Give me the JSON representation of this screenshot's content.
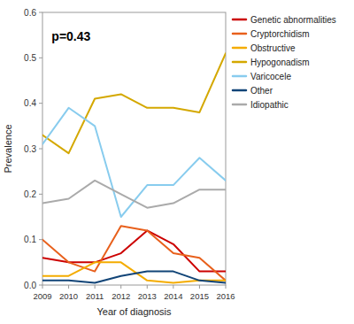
{
  "chart_data": {
    "type": "line",
    "x_label": "Year of diagnosis",
    "y_label": "Prevalence",
    "annotation": "p=0.43",
    "x": [
      2009,
      2010,
      2011,
      2012,
      2013,
      2014,
      2015,
      2016
    ],
    "series": [
      {
        "name": "Genetic abnormalities",
        "color": "#cc0000",
        "values": [
          0.06,
          0.05,
          0.05,
          0.07,
          0.12,
          0.09,
          0.03,
          0.03
        ]
      },
      {
        "name": "Cryptorchidism",
        "color": "#e8601c",
        "values": [
          0.1,
          0.05,
          0.03,
          0.13,
          0.12,
          0.07,
          0.06,
          0.01
        ]
      },
      {
        "name": "Obstructive",
        "color": "#f4ac00",
        "values": [
          0.02,
          0.02,
          0.05,
          0.05,
          0.01,
          0.005,
          0.01,
          0.01
        ]
      },
      {
        "name": "Hypogonadism",
        "color": "#d4a800",
        "values": [
          0.33,
          0.29,
          0.41,
          0.42,
          0.39,
          0.39,
          0.38,
          0.51
        ]
      },
      {
        "name": "Varicocele",
        "color": "#88ccee",
        "values": [
          0.31,
          0.39,
          0.35,
          0.15,
          0.22,
          0.22,
          0.28,
          0.23
        ]
      },
      {
        "name": "Other",
        "color": "#114477",
        "values": [
          0.01,
          0.01,
          0.005,
          0.02,
          0.03,
          0.03,
          0.01,
          0.005
        ]
      },
      {
        "name": "Idiopathic",
        "color": "#aaaaaa",
        "values": [
          0.18,
          0.19,
          0.23,
          0.2,
          0.17,
          0.18,
          0.21,
          0.21
        ]
      }
    ],
    "xlim": [
      2009,
      2016
    ],
    "xticks": [
      2009,
      2010,
      2011,
      2012,
      2013,
      2014,
      2015,
      2016
    ],
    "ylim": [
      0.0,
      0.6
    ],
    "yticks": [
      {
        "value": 0.0,
        "label": "0.0"
      },
      0.1,
      0.2,
      0.3,
      0.4,
      0.5,
      0.6
    ],
    "grid": false,
    "legend": "right"
  }
}
